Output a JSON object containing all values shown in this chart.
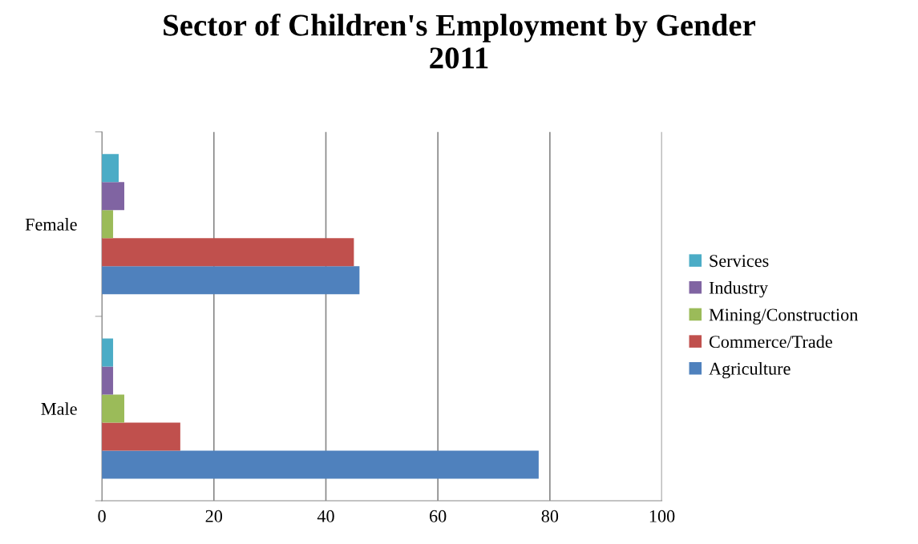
{
  "chart_data": {
    "type": "bar",
    "orientation": "horizontal",
    "title": "Sector of Children's Employment by Gender\n2011",
    "categories": [
      "Female",
      "Male"
    ],
    "series": [
      {
        "name": "Agriculture",
        "color": "#4f81bd",
        "values": [
          46,
          78
        ]
      },
      {
        "name": "Commerce/Trade",
        "color": "#c0504d",
        "values": [
          45,
          14
        ]
      },
      {
        "name": "Mining/Construction",
        "color": "#9bbb59",
        "values": [
          2,
          4
        ]
      },
      {
        "name": "Industry",
        "color": "#8064a2",
        "values": [
          4,
          2
        ]
      },
      {
        "name": "Services",
        "color": "#4bacc6",
        "values": [
          3,
          2
        ]
      }
    ],
    "xlim": [
      0,
      100
    ],
    "xticks": [
      0,
      20,
      40,
      60,
      80,
      100
    ],
    "grid": "x",
    "legend": "right"
  }
}
